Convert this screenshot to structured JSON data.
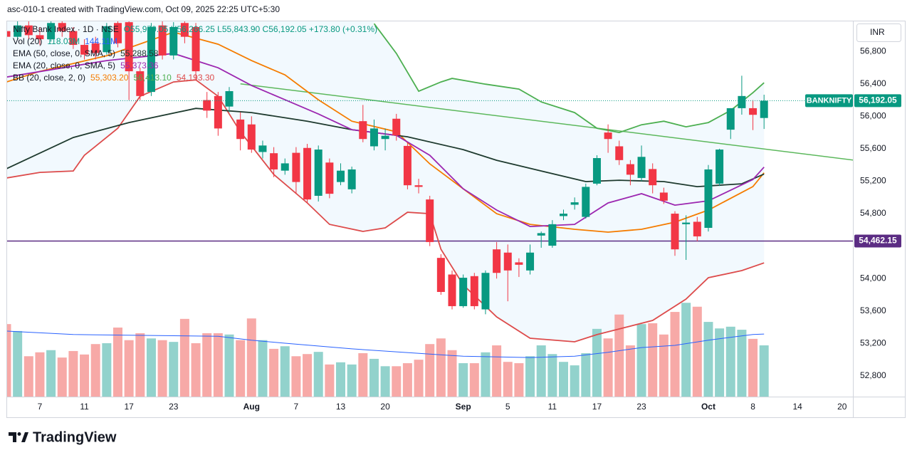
{
  "header": "asc-010-1 created with TradingView.com, Oct 09, 2025 22:25 UTC+5:30",
  "footer": "TradingView",
  "currency": "INR",
  "chart_data": {
    "type": "candlestick",
    "categories": [
      null,
      null,
      null,
      "7",
      null,
      null,
      null,
      "11",
      null,
      null,
      null,
      "17",
      null,
      null,
      null,
      "23",
      null,
      null,
      null,
      null,
      null,
      null,
      "Aug",
      null,
      null,
      null,
      "7",
      null,
      null,
      null,
      "13",
      null,
      null,
      null,
      "20",
      null,
      null,
      null,
      null,
      null,
      null,
      "Sep",
      null,
      null,
      null,
      "5",
      null,
      null,
      null,
      "11",
      null,
      null,
      null,
      "17",
      null,
      null,
      null,
      "23",
      null,
      null,
      null,
      null,
      null,
      "Oct",
      null,
      null,
      null,
      "8",
      null,
      null,
      null,
      "14",
      null,
      null,
      null,
      "20"
    ],
    "ylim": [
      52545,
      57170
    ],
    "yticks": [
      {
        "value": 56800,
        "label": "56,800"
      },
      {
        "value": 56400,
        "label": "56,400"
      },
      {
        "value": 56000,
        "label": "56,000"
      },
      {
        "value": 55600,
        "label": "55,600"
      },
      {
        "value": 55200,
        "label": "55,200"
      },
      {
        "value": 54800,
        "label": "54,800"
      },
      {
        "value": 54000,
        "label": "54,000"
      },
      {
        "value": 53600,
        "label": "53,600"
      },
      {
        "value": 53200,
        "label": "53,200"
      },
      {
        "value": 52800,
        "label": "52,800"
      }
    ],
    "up_color": "#089981",
    "down_color": "#f23645",
    "ohlc": {
      "name": "Nifty Bank Index · 1D · NSE",
      "value_label": "O55,979.05 H56,266.25 L55,843.90 C56,192.05 +173.80 (+0.31%)",
      "open": [
        57050,
        56980,
        57120,
        57000,
        56950,
        57150,
        57050,
        56880,
        56900,
        56790,
        57150,
        57160,
        56555,
        56300,
        57120,
        56750,
        57150,
        57100,
        56200,
        56250,
        56120,
        55960,
        55900,
        55560,
        55545,
        55330,
        55550,
        55610,
        55020,
        55430,
        55190,
        55100,
        55940,
        55630,
        55720,
        55970,
        55635,
        55150,
        54975,
        54255,
        54050,
        53660,
        54030,
        53620,
        54360,
        54320,
        54200,
        54100,
        54530,
        54405,
        54770,
        54910,
        54760,
        55170,
        55800,
        55630,
        55410,
        55240,
        55350,
        55060,
        54800,
        54670,
        54700,
        54625,
        55170,
        55835,
        56100,
        56100,
        55979.05
      ],
      "high": [
        57150,
        57200,
        57180,
        57100,
        57200,
        57220,
        57100,
        56950,
        56980,
        57150,
        57200,
        57200,
        56600,
        57150,
        57180,
        57160,
        57200,
        57150,
        56300,
        56300,
        56360,
        56050,
        56000,
        55700,
        55620,
        55480,
        55620,
        55660,
        55640,
        55480,
        55420,
        55380,
        56140,
        55960,
        55850,
        56030,
        55680,
        55230,
        55020,
        54300,
        54100,
        54050,
        54070,
        54100,
        54450,
        54420,
        54250,
        54420,
        54580,
        54720,
        54850,
        55000,
        55170,
        55520,
        55900,
        55700,
        55460,
        55640,
        55420,
        55120,
        54830,
        54780,
        54760,
        55400,
        55600,
        56100,
        56500,
        56200,
        56266.25
      ],
      "low": [
        56900,
        56950,
        56950,
        56880,
        56920,
        56980,
        56830,
        56700,
        56700,
        56760,
        56850,
        56200,
        56200,
        56250,
        56700,
        56700,
        56900,
        56450,
        55980,
        55760,
        56050,
        55580,
        55550,
        55480,
        55250,
        55280,
        55050,
        54930,
        54950,
        54990,
        55150,
        55050,
        55680,
        55580,
        55580,
        55700,
        55100,
        55050,
        54400,
        53800,
        53620,
        53640,
        53620,
        53560,
        54000,
        53720,
        54020,
        54050,
        54380,
        54380,
        54720,
        54850,
        54740,
        55150,
        55550,
        55400,
        55150,
        55200,
        55050,
        54920,
        54280,
        54230,
        54460,
        54580,
        55140,
        55720,
        56020,
        55830,
        55843.9
      ],
      "close": [
        56980,
        57120,
        57000,
        56950,
        57150,
        57050,
        56880,
        56760,
        56780,
        57110,
        56900,
        56555,
        56250,
        57100,
        56750,
        57100,
        56980,
        56555,
        56070,
        55850,
        56310,
        55720,
        55590,
        55640,
        55345,
        55420,
        55190,
        54975,
        55590,
        55045,
        55330,
        55345,
        55720,
        55850,
        55760,
        55765,
        55150,
        55130,
        54450,
        53835,
        53660,
        54010,
        53660,
        54070,
        54070,
        54100,
        54170,
        54320,
        54560,
        54670,
        54800,
        54940,
        55130,
        55485,
        55720,
        55460,
        55280,
        55500,
        55150,
        54960,
        54360,
        54690,
        54520,
        55345,
        55590,
        56100,
        56250,
        56018.25,
        56192.05
      ]
    },
    "close_label": {
      "name": "BANKNIFTY",
      "label": "56,192.05"
    },
    "volume": {
      "name": "Vol (20)",
      "value_label": "118.03M",
      "ylim": [
        0,
        864
      ],
      "up_color": "#92d2cc",
      "down_color": "#f7a9a7",
      "values": [
        167,
        151,
        93,
        102,
        107,
        90,
        105,
        97,
        121,
        123,
        159,
        130,
        146,
        134,
        130,
        126,
        179,
        123,
        146,
        146,
        143,
        130,
        180,
        130,
        110,
        116,
        93,
        98,
        103,
        74,
        79,
        74,
        100,
        87,
        70,
        70,
        77,
        85,
        121,
        134,
        107,
        77,
        77,
        102,
        118,
        80,
        77,
        93,
        118,
        98,
        80,
        72,
        100,
        156,
        134,
        189,
        118,
        167,
        169,
        143,
        195,
        216,
        207,
        172,
        157,
        161,
        154,
        133,
        118.03
      ],
      "ma": {
        "color": "#2962ff",
        "value_label": "144.11M",
        "x": [
          0,
          6,
          19,
          22,
          25,
          31,
          38,
          41,
          47,
          51,
          54,
          57,
          60,
          63,
          67,
          68
        ],
        "values": [
          151,
          143,
          139,
          130,
          123,
          110,
          98,
          93,
          90,
          93,
          102,
          113,
          118,
          130,
          143,
          144.11
        ]
      }
    },
    "lines": [
      {
        "name": "EMA (50, close, 0, SMA, 5)",
        "color": "#1e3a2e",
        "value_label": "55,288.58",
        "x": [
          0,
          6,
          11,
          17,
          22,
          27,
          31,
          36,
          41,
          44,
          48,
          52,
          55,
          59,
          62,
          66,
          68
        ],
        "values": [
          55353,
          55739,
          55923,
          56098,
          56046,
          55940,
          55835,
          55747,
          55589,
          55458,
          55326,
          55195,
          55212,
          55195,
          55133,
          55168,
          55288.58
        ]
      },
      {
        "name": "EMA (20, close, 0, SMA, 5)",
        "color": "#9c27b0",
        "value_label": "55,373.36",
        "x": [
          0,
          9,
          15,
          19,
          22,
          25,
          28,
          31,
          35,
          38,
          41,
          44,
          47,
          51,
          54,
          57,
          60,
          63,
          67,
          68
        ],
        "values": [
          56484,
          56686,
          56774,
          56598,
          56379,
          56204,
          56028,
          55835,
          55765,
          55519,
          55107,
          54844,
          54642,
          54668,
          54932,
          55046,
          54905,
          54958,
          55221,
          55373.36
        ]
      }
    ],
    "bb": {
      "name": "BB (20, close, 2, 0)",
      "fill": "#2196f3",
      "basis": {
        "color": "#f57c00",
        "value_label": "55,303.20",
        "x": [
          0,
          3,
          9,
          15,
          19,
          22,
          25,
          28,
          31,
          35,
          38,
          41,
          44,
          47,
          51,
          54,
          57,
          60,
          63,
          67,
          68
        ],
        "values": [
          56423,
          56554,
          56747,
          57037,
          56888,
          56686,
          56510,
          56204,
          55940,
          55809,
          55414,
          55107,
          54800,
          54668,
          54607,
          54572,
          54607,
          54695,
          54844,
          55133,
          55303.2
        ]
      },
      "upper": {
        "color": "#4caf50",
        "value_label": "56,413.10",
        "x": [
          33,
          35,
          37,
          39,
          40,
          43,
          46,
          48,
          51,
          53,
          55,
          57,
          59,
          61,
          63,
          65,
          67,
          68
        ],
        "values": [
          57142,
          56774,
          56309,
          56423,
          56467,
          56396,
          56335,
          56177,
          56046,
          55853,
          55800,
          55896,
          55940,
          55870,
          55923,
          56072,
          56291,
          56413.1
        ]
      },
      "lower": {
        "color": "#dd4b4b",
        "value_label": "54,193.30",
        "x": [
          0,
          3,
          6,
          7,
          10,
          12,
          15,
          17,
          19,
          21,
          24,
          27,
          29,
          32,
          34,
          36,
          38,
          39,
          41,
          44,
          47,
          51,
          53,
          56,
          58,
          61,
          63,
          66,
          68
        ],
        "values": [
          55239,
          55309,
          55326,
          55519,
          55853,
          56247,
          56423,
          56449,
          56247,
          55809,
          55282,
          54932,
          54668,
          54581,
          54625,
          54817,
          54800,
          54361,
          53923,
          53528,
          53265,
          53221,
          53309,
          53414,
          53484,
          53747,
          54011,
          54098,
          54193.3
        ]
      }
    },
    "trendline": {
      "color": "#5cb85c",
      "x": [
        21,
        76
      ],
      "values": [
        56400,
        55460
      ]
    },
    "hline": {
      "value": 54462.15,
      "label": "54,462.15",
      "color": "#5b2c83"
    }
  }
}
